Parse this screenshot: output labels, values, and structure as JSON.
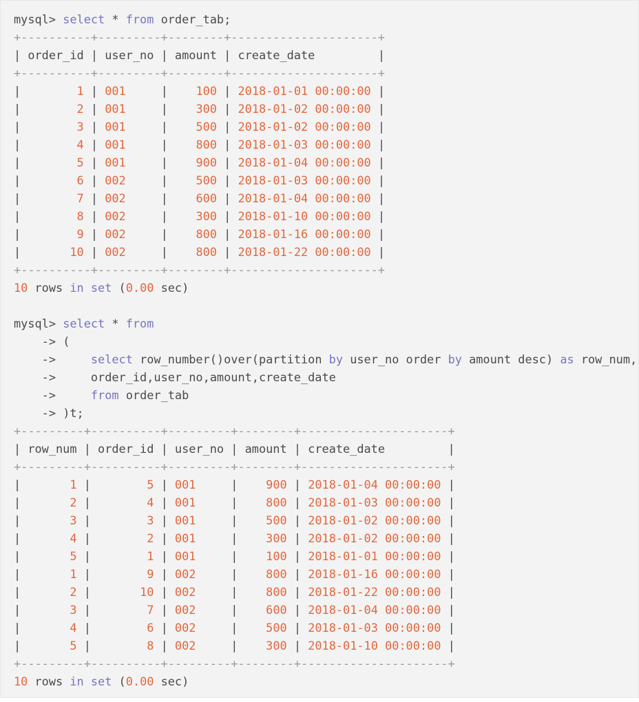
{
  "colors": {
    "background": "#f3f3f3",
    "text": "#4a4a4a",
    "keyword": "#7474c4",
    "value": "#e0673e",
    "border": "#9a9a9a"
  },
  "prompt": "mysql>",
  "continuation": "->",
  "blocks": [
    {
      "query_lines": [
        "select * from order_tab;"
      ],
      "table": {
        "columns": [
          {
            "name": "order_id",
            "width": 10,
            "align": "right"
          },
          {
            "name": "user_no",
            "width": 9,
            "align": "left"
          },
          {
            "name": "amount",
            "width": 8,
            "align": "right"
          },
          {
            "name": "create_date",
            "width": 21,
            "align": "left"
          }
        ],
        "rows": [
          [
            "1",
            "001",
            "100",
            "2018-01-01 00:00:00"
          ],
          [
            "2",
            "001",
            "300",
            "2018-01-02 00:00:00"
          ],
          [
            "3",
            "001",
            "500",
            "2018-01-02 00:00:00"
          ],
          [
            "4",
            "001",
            "800",
            "2018-01-03 00:00:00"
          ],
          [
            "5",
            "001",
            "900",
            "2018-01-04 00:00:00"
          ],
          [
            "6",
            "002",
            "500",
            "2018-01-03 00:00:00"
          ],
          [
            "7",
            "002",
            "600",
            "2018-01-04 00:00:00"
          ],
          [
            "8",
            "002",
            "300",
            "2018-01-10 00:00:00"
          ],
          [
            "9",
            "002",
            "800",
            "2018-01-16 00:00:00"
          ],
          [
            "10",
            "002",
            "800",
            "2018-01-22 00:00:00"
          ]
        ]
      },
      "summary": {
        "count": "10",
        "text_rows": "rows",
        "in": "in",
        "set": "set",
        "time": "0.00",
        "unit": "sec"
      }
    },
    {
      "query_lines": [
        "select * from",
        "(",
        "    select row_number()over(partition by user_no order by amount desc) as row_num,",
        "    order_id,user_no,amount,create_date",
        "    from order_tab",
        ")t;"
      ],
      "table": {
        "columns": [
          {
            "name": "row_num",
            "width": 9,
            "align": "right"
          },
          {
            "name": "order_id",
            "width": 10,
            "align": "right"
          },
          {
            "name": "user_no",
            "width": 9,
            "align": "left"
          },
          {
            "name": "amount",
            "width": 8,
            "align": "right"
          },
          {
            "name": "create_date",
            "width": 21,
            "align": "left"
          }
        ],
        "rows": [
          [
            "1",
            "5",
            "001",
            "900",
            "2018-01-04 00:00:00"
          ],
          [
            "2",
            "4",
            "001",
            "800",
            "2018-01-03 00:00:00"
          ],
          [
            "3",
            "3",
            "001",
            "500",
            "2018-01-02 00:00:00"
          ],
          [
            "4",
            "2",
            "001",
            "300",
            "2018-01-02 00:00:00"
          ],
          [
            "5",
            "1",
            "001",
            "100",
            "2018-01-01 00:00:00"
          ],
          [
            "1",
            "9",
            "002",
            "800",
            "2018-01-16 00:00:00"
          ],
          [
            "2",
            "10",
            "002",
            "800",
            "2018-01-22 00:00:00"
          ],
          [
            "3",
            "7",
            "002",
            "600",
            "2018-01-04 00:00:00"
          ],
          [
            "4",
            "6",
            "002",
            "500",
            "2018-01-03 00:00:00"
          ],
          [
            "5",
            "8",
            "002",
            "300",
            "2018-01-10 00:00:00"
          ]
        ]
      },
      "summary": {
        "count": "10",
        "text_rows": "rows",
        "in": "in",
        "set": "set",
        "time": "0.00",
        "unit": "sec"
      }
    }
  ]
}
